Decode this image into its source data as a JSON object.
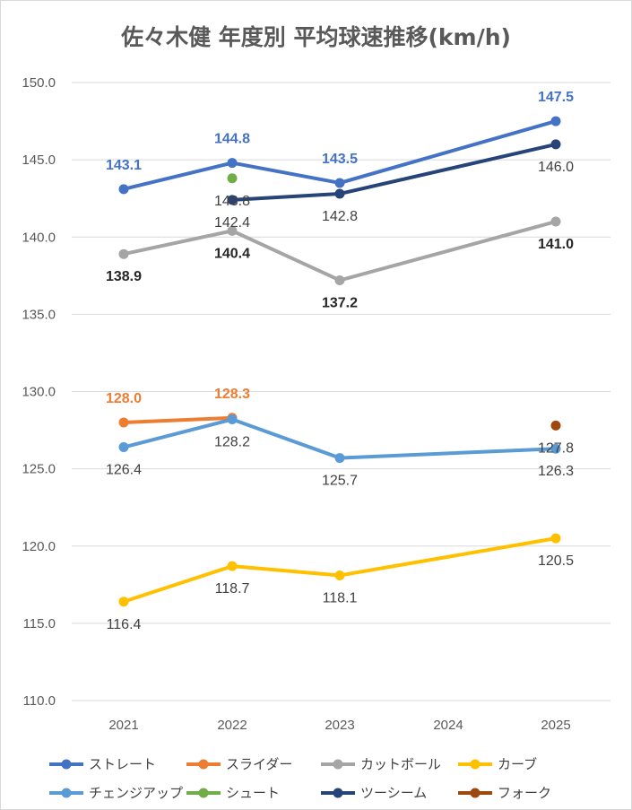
{
  "title": "佐々木健 年度別 平均球速推移(km/h)",
  "chart_data": {
    "type": "line",
    "title": "佐々木健 年度別 平均球速推移(km/h)",
    "categories": [
      "2021",
      "2022",
      "2023",
      "2024",
      "2025"
    ],
    "ylim": [
      110,
      150
    ],
    "yticks": [
      "110.0",
      "115.0",
      "120.0",
      "125.0",
      "130.0",
      "135.0",
      "140.0",
      "145.0",
      "150.0"
    ],
    "grid": true,
    "legend_position": "bottom",
    "series": [
      {
        "name": "ストレート",
        "color": "#4472C4",
        "values": [
          143.1,
          144.8,
          143.5,
          null,
          147.5
        ],
        "labels": [
          "143.1",
          "144.8",
          "143.5",
          null,
          "147.5"
        ],
        "label_pos": "above",
        "label_color": "#4472C4",
        "label_bold": true
      },
      {
        "name": "スライダー",
        "color": "#ED7D31",
        "values": [
          128.0,
          128.3,
          null,
          null,
          null
        ],
        "labels": [
          "128.0",
          "128.3",
          null,
          null,
          null
        ],
        "label_pos": "above",
        "label_color": "#ED7D31",
        "label_bold": true
      },
      {
        "name": "カットボール",
        "color": "#A5A5A5",
        "values": [
          138.9,
          140.4,
          137.2,
          null,
          141.0
        ],
        "labels": [
          "138.9",
          "140.4",
          "137.2",
          null,
          "141.0"
        ],
        "label_pos": "below",
        "label_color": "#262626",
        "label_bold": true
      },
      {
        "name": "カーブ",
        "color": "#FFC000",
        "values": [
          116.4,
          118.7,
          118.1,
          null,
          120.5
        ],
        "labels": [
          "116.4",
          "118.7",
          "118.1",
          null,
          "120.5"
        ],
        "label_pos": "below",
        "label_color": "#404040",
        "label_bold": false
      },
      {
        "name": "チェンジアップ",
        "color": "#5B9BD5",
        "values": [
          126.4,
          128.2,
          125.7,
          null,
          126.3
        ],
        "labels": [
          "126.4",
          "128.2",
          "125.7",
          null,
          "126.3"
        ],
        "label_pos": "below",
        "label_color": "#404040",
        "label_bold": false
      },
      {
        "name": "シュート",
        "color": "#70AD47",
        "values": [
          null,
          143.8,
          null,
          null,
          null
        ],
        "labels": [
          null,
          "143.8",
          null,
          null,
          null
        ],
        "label_pos": "below",
        "label_color": "#404040",
        "label_bold": false
      },
      {
        "name": "ツーシーム",
        "color": "#264478",
        "values": [
          null,
          142.4,
          142.8,
          null,
          146.0
        ],
        "labels": [
          null,
          "142.4",
          "142.8",
          null,
          "146.0"
        ],
        "label_pos": "below",
        "label_color": "#404040",
        "label_bold": false
      },
      {
        "name": "フォーク",
        "color": "#9E480E",
        "values": [
          null,
          null,
          null,
          null,
          127.8
        ],
        "labels": [
          null,
          null,
          null,
          null,
          "127.8"
        ],
        "label_pos": "below",
        "label_color": "#404040",
        "label_bold": false
      }
    ]
  }
}
